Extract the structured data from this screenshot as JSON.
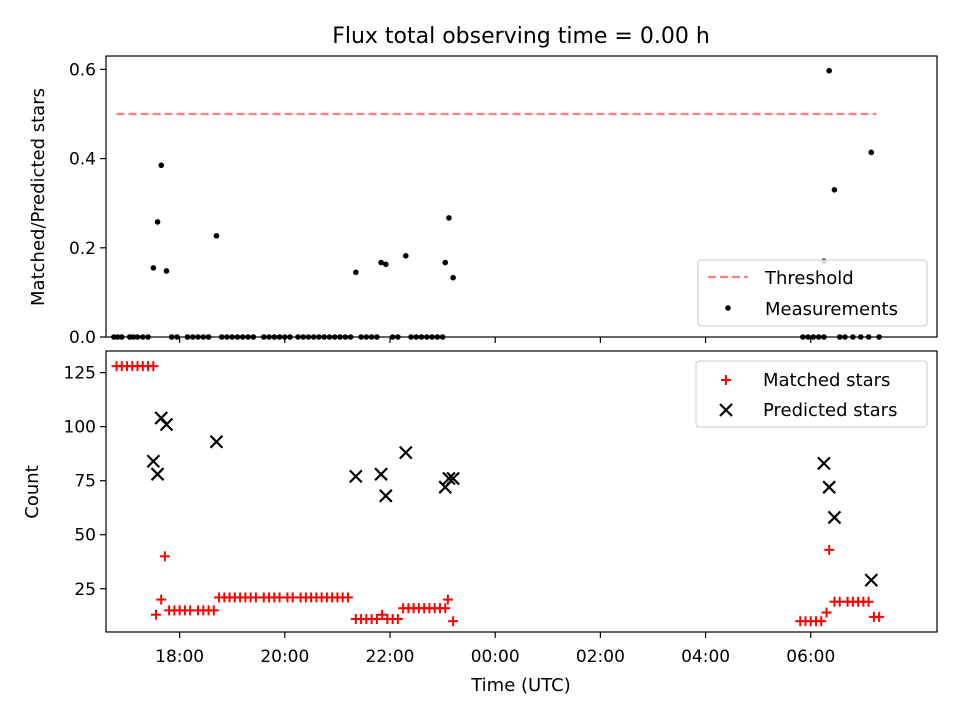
{
  "chart_data": [
    {
      "type": "scatter",
      "title": "Flux total observing time = 0.00 h",
      "ylabel": "Matched/Predicted stars",
      "xlabel": "",
      "x_unit": "hours (UTC, continuing past midnight as 24+)",
      "xlim": [
        16.6,
        32.4
      ],
      "ylim": [
        0.0,
        0.63
      ],
      "yticks": [
        "0.0",
        "0.2",
        "0.4",
        "0.6"
      ],
      "legend_loc": "lower right",
      "threshold": {
        "name": "Threshold",
        "value": 0.5,
        "x_range": [
          16.8,
          31.25
        ],
        "color": "#ff7f7f"
      },
      "series": [
        {
          "name": "Measurements",
          "color": "#000000",
          "points": [
            [
              16.75,
              0
            ],
            [
              16.82,
              0
            ],
            [
              16.9,
              0
            ],
            [
              17.05,
              0
            ],
            [
              17.12,
              0
            ],
            [
              17.2,
              0
            ],
            [
              17.3,
              0
            ],
            [
              17.4,
              0
            ],
            [
              17.5,
              0.155
            ],
            [
              17.58,
              0.258
            ],
            [
              17.65,
              0.385
            ],
            [
              17.75,
              0.148
            ],
            [
              17.85,
              0
            ],
            [
              17.95,
              0
            ],
            [
              18.15,
              0
            ],
            [
              18.25,
              0
            ],
            [
              18.35,
              0
            ],
            [
              18.45,
              0
            ],
            [
              18.55,
              0
            ],
            [
              18.7,
              0.227
            ],
            [
              18.8,
              0
            ],
            [
              18.9,
              0
            ],
            [
              19.0,
              0
            ],
            [
              19.1,
              0
            ],
            [
              19.2,
              0
            ],
            [
              19.3,
              0
            ],
            [
              19.4,
              0
            ],
            [
              19.6,
              0
            ],
            [
              19.7,
              0
            ],
            [
              19.8,
              0
            ],
            [
              19.9,
              0
            ],
            [
              20.0,
              0
            ],
            [
              20.1,
              0
            ],
            [
              20.25,
              0
            ],
            [
              20.35,
              0
            ],
            [
              20.45,
              0
            ],
            [
              20.55,
              0
            ],
            [
              20.65,
              0
            ],
            [
              20.75,
              0
            ],
            [
              20.85,
              0
            ],
            [
              20.95,
              0
            ],
            [
              21.05,
              0
            ],
            [
              21.15,
              0
            ],
            [
              21.25,
              0
            ],
            [
              21.35,
              0.145
            ],
            [
              21.45,
              0
            ],
            [
              21.55,
              0
            ],
            [
              21.65,
              0
            ],
            [
              21.75,
              0
            ],
            [
              21.83,
              0.167
            ],
            [
              21.92,
              0.163
            ],
            [
              22.05,
              0
            ],
            [
              22.15,
              0
            ],
            [
              22.3,
              0.182
            ],
            [
              22.4,
              0
            ],
            [
              22.5,
              0
            ],
            [
              22.6,
              0
            ],
            [
              22.7,
              0
            ],
            [
              22.8,
              0
            ],
            [
              22.9,
              0
            ],
            [
              23.0,
              0
            ],
            [
              23.05,
              0.167
            ],
            [
              23.12,
              0.267
            ],
            [
              23.2,
              0.133
            ],
            [
              29.85,
              0
            ],
            [
              29.95,
              0
            ],
            [
              30.05,
              0
            ],
            [
              30.15,
              0
            ],
            [
              30.25,
              0
            ],
            [
              30.25,
              0.17
            ],
            [
              30.35,
              0.597
            ],
            [
              30.45,
              0.33
            ],
            [
              30.55,
              0
            ],
            [
              30.65,
              0
            ],
            [
              30.8,
              0
            ],
            [
              30.95,
              0
            ],
            [
              31.1,
              0
            ],
            [
              31.15,
              0.414
            ],
            [
              31.3,
              0
            ]
          ]
        }
      ]
    },
    {
      "type": "scatter",
      "title": "",
      "ylabel": "Count",
      "xlabel": "Time (UTC)",
      "x_unit": "hours (UTC, continuing past midnight as 24+)",
      "xlim": [
        16.6,
        32.4
      ],
      "ylim": [
        5,
        135
      ],
      "yticks": [
        "25",
        "50",
        "75",
        "100",
        "125"
      ],
      "xticks": [
        "18:00",
        "20:00",
        "22:00",
        "00:00",
        "02:00",
        "04:00",
        "06:00"
      ],
      "legend_loc": "upper right",
      "series": [
        {
          "name": "Matched stars",
          "marker": "plus",
          "color": "#ff0000",
          "points": [
            [
              16.8,
              128
            ],
            [
              16.9,
              128
            ],
            [
              17.0,
              128
            ],
            [
              17.1,
              128
            ],
            [
              17.2,
              128
            ],
            [
              17.3,
              128
            ],
            [
              17.4,
              128
            ],
            [
              17.5,
              128
            ],
            [
              17.55,
              13
            ],
            [
              17.65,
              20
            ],
            [
              17.72,
              40
            ],
            [
              17.8,
              15
            ],
            [
              17.9,
              15
            ],
            [
              18.0,
              15
            ],
            [
              18.1,
              15
            ],
            [
              18.2,
              15
            ],
            [
              18.35,
              15
            ],
            [
              18.45,
              15
            ],
            [
              18.55,
              15
            ],
            [
              18.65,
              15
            ],
            [
              18.75,
              21
            ],
            [
              18.85,
              21
            ],
            [
              18.95,
              21
            ],
            [
              19.05,
              21
            ],
            [
              19.15,
              21
            ],
            [
              19.25,
              21
            ],
            [
              19.35,
              21
            ],
            [
              19.45,
              21
            ],
            [
              19.6,
              21
            ],
            [
              19.7,
              21
            ],
            [
              19.8,
              21
            ],
            [
              19.9,
              21
            ],
            [
              20.05,
              21
            ],
            [
              20.15,
              21
            ],
            [
              20.3,
              21
            ],
            [
              20.4,
              21
            ],
            [
              20.5,
              21
            ],
            [
              20.6,
              21
            ],
            [
              20.7,
              21
            ],
            [
              20.8,
              21
            ],
            [
              20.9,
              21
            ],
            [
              21.0,
              21
            ],
            [
              21.1,
              21
            ],
            [
              21.2,
              21
            ],
            [
              21.35,
              11
            ],
            [
              21.45,
              11
            ],
            [
              21.55,
              11
            ],
            [
              21.65,
              11
            ],
            [
              21.75,
              11
            ],
            [
              21.85,
              13
            ],
            [
              21.95,
              11
            ],
            [
              22.05,
              11
            ],
            [
              22.15,
              11
            ],
            [
              22.25,
              16
            ],
            [
              22.35,
              16
            ],
            [
              22.45,
              16
            ],
            [
              22.55,
              16
            ],
            [
              22.65,
              16
            ],
            [
              22.75,
              16
            ],
            [
              22.85,
              16
            ],
            [
              22.95,
              16
            ],
            [
              23.05,
              16
            ],
            [
              23.1,
              20
            ],
            [
              23.2,
              10
            ],
            [
              29.8,
              10
            ],
            [
              29.9,
              10
            ],
            [
              30.0,
              10
            ],
            [
              30.1,
              10
            ],
            [
              30.2,
              10
            ],
            [
              30.3,
              14
            ],
            [
              30.35,
              43
            ],
            [
              30.45,
              19
            ],
            [
              30.55,
              19
            ],
            [
              30.7,
              19
            ],
            [
              30.8,
              19
            ],
            [
              30.9,
              19
            ],
            [
              31.0,
              19
            ],
            [
              31.1,
              19
            ],
            [
              31.2,
              12
            ],
            [
              31.3,
              12
            ]
          ]
        },
        {
          "name": "Predicted stars",
          "marker": "x",
          "color": "#000000",
          "points": [
            [
              17.5,
              84
            ],
            [
              17.58,
              78
            ],
            [
              17.65,
              104
            ],
            [
              17.75,
              101
            ],
            [
              18.7,
              93
            ],
            [
              21.35,
              77
            ],
            [
              21.83,
              78
            ],
            [
              21.92,
              68
            ],
            [
              22.3,
              88
            ],
            [
              23.05,
              72
            ],
            [
              23.12,
              76
            ],
            [
              23.2,
              76
            ],
            [
              30.25,
              83
            ],
            [
              30.35,
              72
            ],
            [
              30.45,
              58
            ],
            [
              31.15,
              29
            ]
          ]
        }
      ]
    }
  ]
}
